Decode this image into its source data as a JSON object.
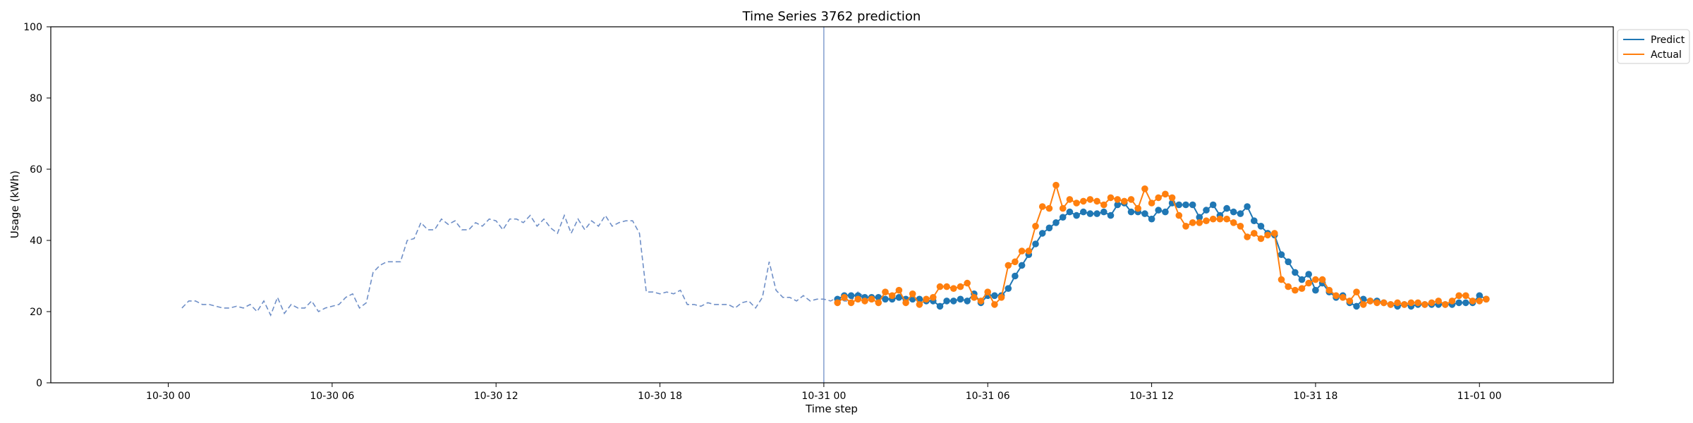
{
  "chart_data": {
    "type": "line",
    "title": "Time Series 3762 prediction",
    "xlabel": "Time step",
    "ylabel": "Usage (kWh)",
    "ylim": [
      0,
      100
    ],
    "yticks": [
      0,
      20,
      40,
      60,
      80,
      100
    ],
    "xlim_hours": [
      -4.3,
      52.9
    ],
    "xticks": [
      {
        "hour": 0,
        "label": "10-30 00"
      },
      {
        "hour": 6,
        "label": "10-30 06"
      },
      {
        "hour": 12,
        "label": "10-30 12"
      },
      {
        "hour": 18,
        "label": "10-30 18"
      },
      {
        "hour": 24,
        "label": "10-31 00"
      },
      {
        "hour": 30,
        "label": "10-31 06"
      },
      {
        "hour": 36,
        "label": "10-31 12"
      },
      {
        "hour": 42,
        "label": "10-31 18"
      },
      {
        "hour": 48,
        "label": "11-01 00"
      }
    ],
    "forecast_start_hour": 24,
    "grid": false,
    "legend_position": "top-right (outside)",
    "history": {
      "color": "#6f8fc7",
      "x_start_hour": 0.5,
      "step_hours": 0.25,
      "values": [
        21,
        23,
        23,
        22,
        22,
        21.5,
        21,
        21,
        21.5,
        21,
        22,
        20,
        23,
        19,
        24,
        19.5,
        22,
        21,
        21,
        23,
        20,
        21,
        21.5,
        22,
        24,
        25,
        21,
        22.5,
        31,
        33,
        34,
        34,
        34,
        40,
        40.5,
        45,
        43,
        43,
        46,
        44.5,
        45.5,
        43,
        43,
        45,
        44,
        46,
        45.5,
        43,
        46,
        46,
        45,
        47,
        44,
        46,
        43.5,
        42,
        47,
        42,
        46,
        43,
        45.5,
        44,
        47,
        44,
        45,
        45.5,
        45.5,
        42,
        25.5,
        25.5,
        25,
        25.5,
        25,
        26,
        22,
        22,
        21.5,
        22.5,
        22,
        22,
        22,
        21,
        22.5,
        23,
        21,
        24,
        34,
        26,
        24,
        24,
        23,
        24.5,
        23,
        23.5,
        23.5,
        23,
        24,
        23,
        23,
        25.5,
        24
      ]
    },
    "series": [
      {
        "name": "Predict",
        "color": "#1f77b4",
        "x_start_hour": 24.5,
        "step_hours": 0.25,
        "values": [
          23.5,
          24.5,
          24.5,
          24.5,
          24,
          24,
          24,
          23.5,
          23.5,
          24,
          23.5,
          23.5,
          23.5,
          23,
          23,
          21.5,
          23,
          23,
          23.5,
          23,
          25,
          22.5,
          24.5,
          24.5,
          24.5,
          26.5,
          30,
          33,
          36,
          39,
          42,
          43.5,
          45,
          46.5,
          48,
          47,
          48,
          47.5,
          47.5,
          48,
          47,
          50,
          50.5,
          48,
          48,
          47.5,
          46,
          48.5,
          48,
          50.5,
          50,
          50,
          50,
          46.5,
          48.5,
          50,
          47,
          49,
          48,
          47.5,
          49.5,
          45.5,
          44,
          42,
          41.5,
          36,
          34,
          31,
          29,
          30.5,
          26,
          28,
          25.5,
          24,
          24.5,
          22.5,
          21.5,
          23.5,
          23,
          23,
          22.5,
          22,
          21.5,
          22,
          21.5,
          22,
          22,
          22,
          22,
          22,
          22,
          22.5,
          22.5,
          22.5,
          24.5,
          23.5
        ]
      },
      {
        "name": "Actual",
        "color": "#ff7f0e",
        "x_start_hour": 24.5,
        "step_hours": 0.25,
        "values": [
          22.5,
          24,
          22.5,
          23.5,
          23,
          23.5,
          22.5,
          25.5,
          24.5,
          26,
          22.5,
          25,
          22,
          23.5,
          24,
          27,
          27,
          26.5,
          27,
          28,
          24,
          23,
          25.5,
          22,
          24,
          33,
          34,
          37,
          37,
          44,
          49.5,
          49,
          55.5,
          49,
          51.5,
          50.5,
          51,
          51.5,
          51,
          50,
          52,
          51.5,
          51,
          51.5,
          49,
          54.5,
          50.5,
          52,
          53,
          52,
          47,
          44,
          45,
          45,
          45.5,
          46,
          46,
          46,
          45,
          44,
          41,
          42,
          40.5,
          41.5,
          42,
          29,
          27,
          26,
          26.5,
          28,
          29,
          29,
          26,
          24.5,
          24,
          23,
          25.5,
          22,
          23,
          22.5,
          22.5,
          22,
          22.5,
          22,
          22.5,
          22.5,
          22,
          22.5,
          23,
          22,
          23,
          24.5,
          24.5,
          23,
          23,
          23.5
        ]
      }
    ]
  }
}
